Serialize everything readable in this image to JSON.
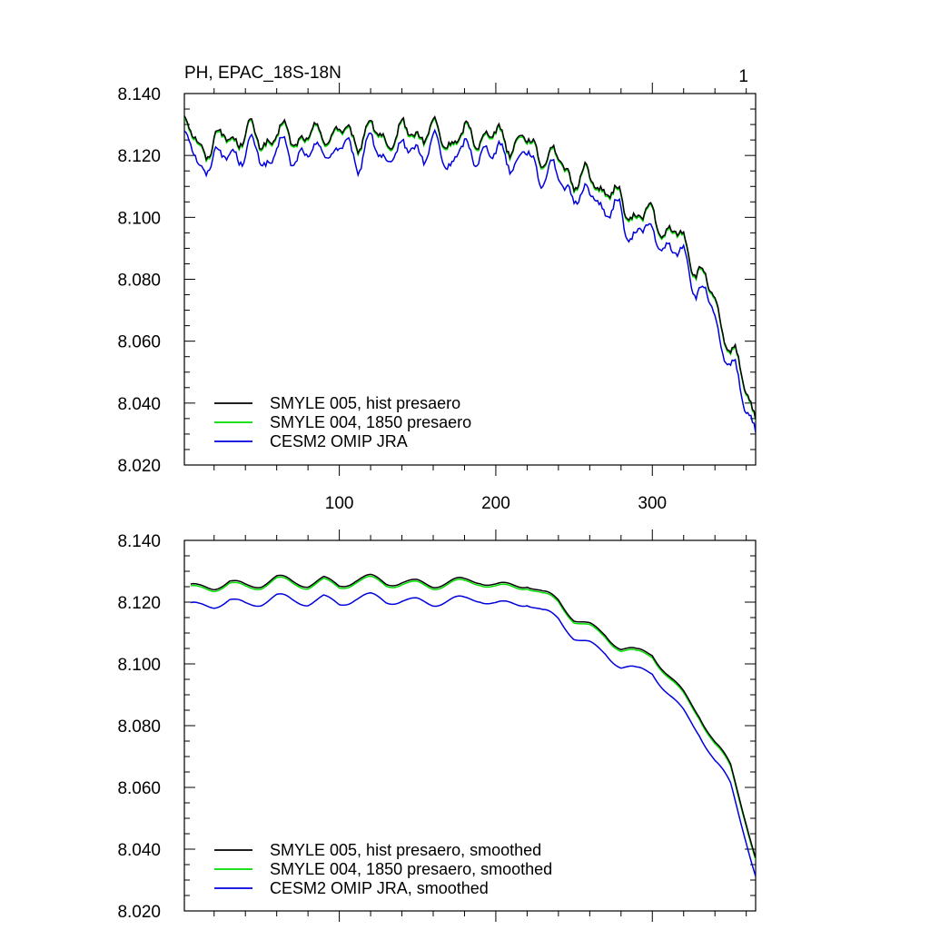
{
  "chart_data": [
    {
      "type": "line",
      "title": "PH, EPAC_18S-18N",
      "panel_number": "1",
      "xlim": [
        1,
        366
      ],
      "ylim": [
        8.02,
        8.14
      ],
      "y_ticks": [
        "8.140",
        "8.120",
        "8.100",
        "8.080",
        "8.060",
        "8.040",
        "8.020"
      ],
      "x_ticks": [
        "100",
        "200",
        "300"
      ],
      "legend_position": "bottom-left",
      "series": [
        {
          "name": "SMYLE 005, hist presaero",
          "color": "#000000",
          "offset": 0.0
        },
        {
          "name": "SMYLE 004, 1850 presaero",
          "color": "#00dd00",
          "offset": -0.0005
        },
        {
          "name": "CESM2 OMIP JRA",
          "color": "#0000dd",
          "offset": -0.0055
        }
      ],
      "x": [
        1,
        10,
        20,
        30,
        40,
        50,
        60,
        70,
        80,
        90,
        100,
        110,
        120,
        130,
        140,
        150,
        160,
        170,
        180,
        190,
        200,
        210,
        220,
        230,
        240,
        250,
        260,
        270,
        280,
        290,
        300,
        310,
        320,
        330,
        340,
        350,
        360,
        366
      ],
      "base": [
        8.13,
        8.123,
        8.124,
        8.126,
        8.127,
        8.125,
        8.126,
        8.127,
        8.125,
        8.128,
        8.127,
        8.126,
        8.128,
        8.125,
        8.127,
        8.128,
        8.127,
        8.125,
        8.126,
        8.127,
        8.126,
        8.125,
        8.124,
        8.121,
        8.118,
        8.113,
        8.112,
        8.11,
        8.104,
        8.101,
        8.1,
        8.096,
        8.092,
        8.083,
        8.072,
        8.058,
        8.044,
        8.037
      ],
      "noise_amplitude": 0.006
    },
    {
      "type": "line",
      "title": "",
      "xlim": [
        1,
        366
      ],
      "ylim": [
        8.02,
        8.14
      ],
      "y_ticks": [
        "8.140",
        "8.120",
        "8.100",
        "8.080",
        "8.060",
        "8.040",
        "8.020"
      ],
      "legend_position": "bottom-left",
      "series": [
        {
          "name": "SMYLE 005, hist presaero, smoothed",
          "color": "#000000",
          "offset": 0.0
        },
        {
          "name": "SMYLE 004, 1850 presaero, smoothed",
          "color": "#00dd00",
          "offset": -0.0006
        },
        {
          "name": "CESM2 OMIP JRA, smoothed",
          "color": "#0000dd",
          "offset": -0.006
        }
      ],
      "x": [
        5,
        10,
        20,
        30,
        40,
        50,
        60,
        70,
        80,
        90,
        100,
        110,
        120,
        130,
        140,
        150,
        160,
        170,
        180,
        190,
        200,
        210,
        220,
        230,
        240,
        250,
        260,
        270,
        280,
        290,
        300,
        310,
        320,
        330,
        340,
        350,
        360,
        366
      ],
      "base": [
        8.124,
        8.124,
        8.125,
        8.127,
        8.126,
        8.126,
        8.127,
        8.126,
        8.126,
        8.128,
        8.126,
        8.127,
        8.127,
        8.126,
        8.127,
        8.127,
        8.126,
        8.126,
        8.126,
        8.127,
        8.126,
        8.126,
        8.126,
        8.122,
        8.12,
        8.115,
        8.113,
        8.11,
        8.105,
        8.103,
        8.103,
        8.097,
        8.091,
        8.084,
        8.074,
        8.066,
        8.049,
        8.038
      ],
      "noise_amplitude": 0.002
    }
  ]
}
